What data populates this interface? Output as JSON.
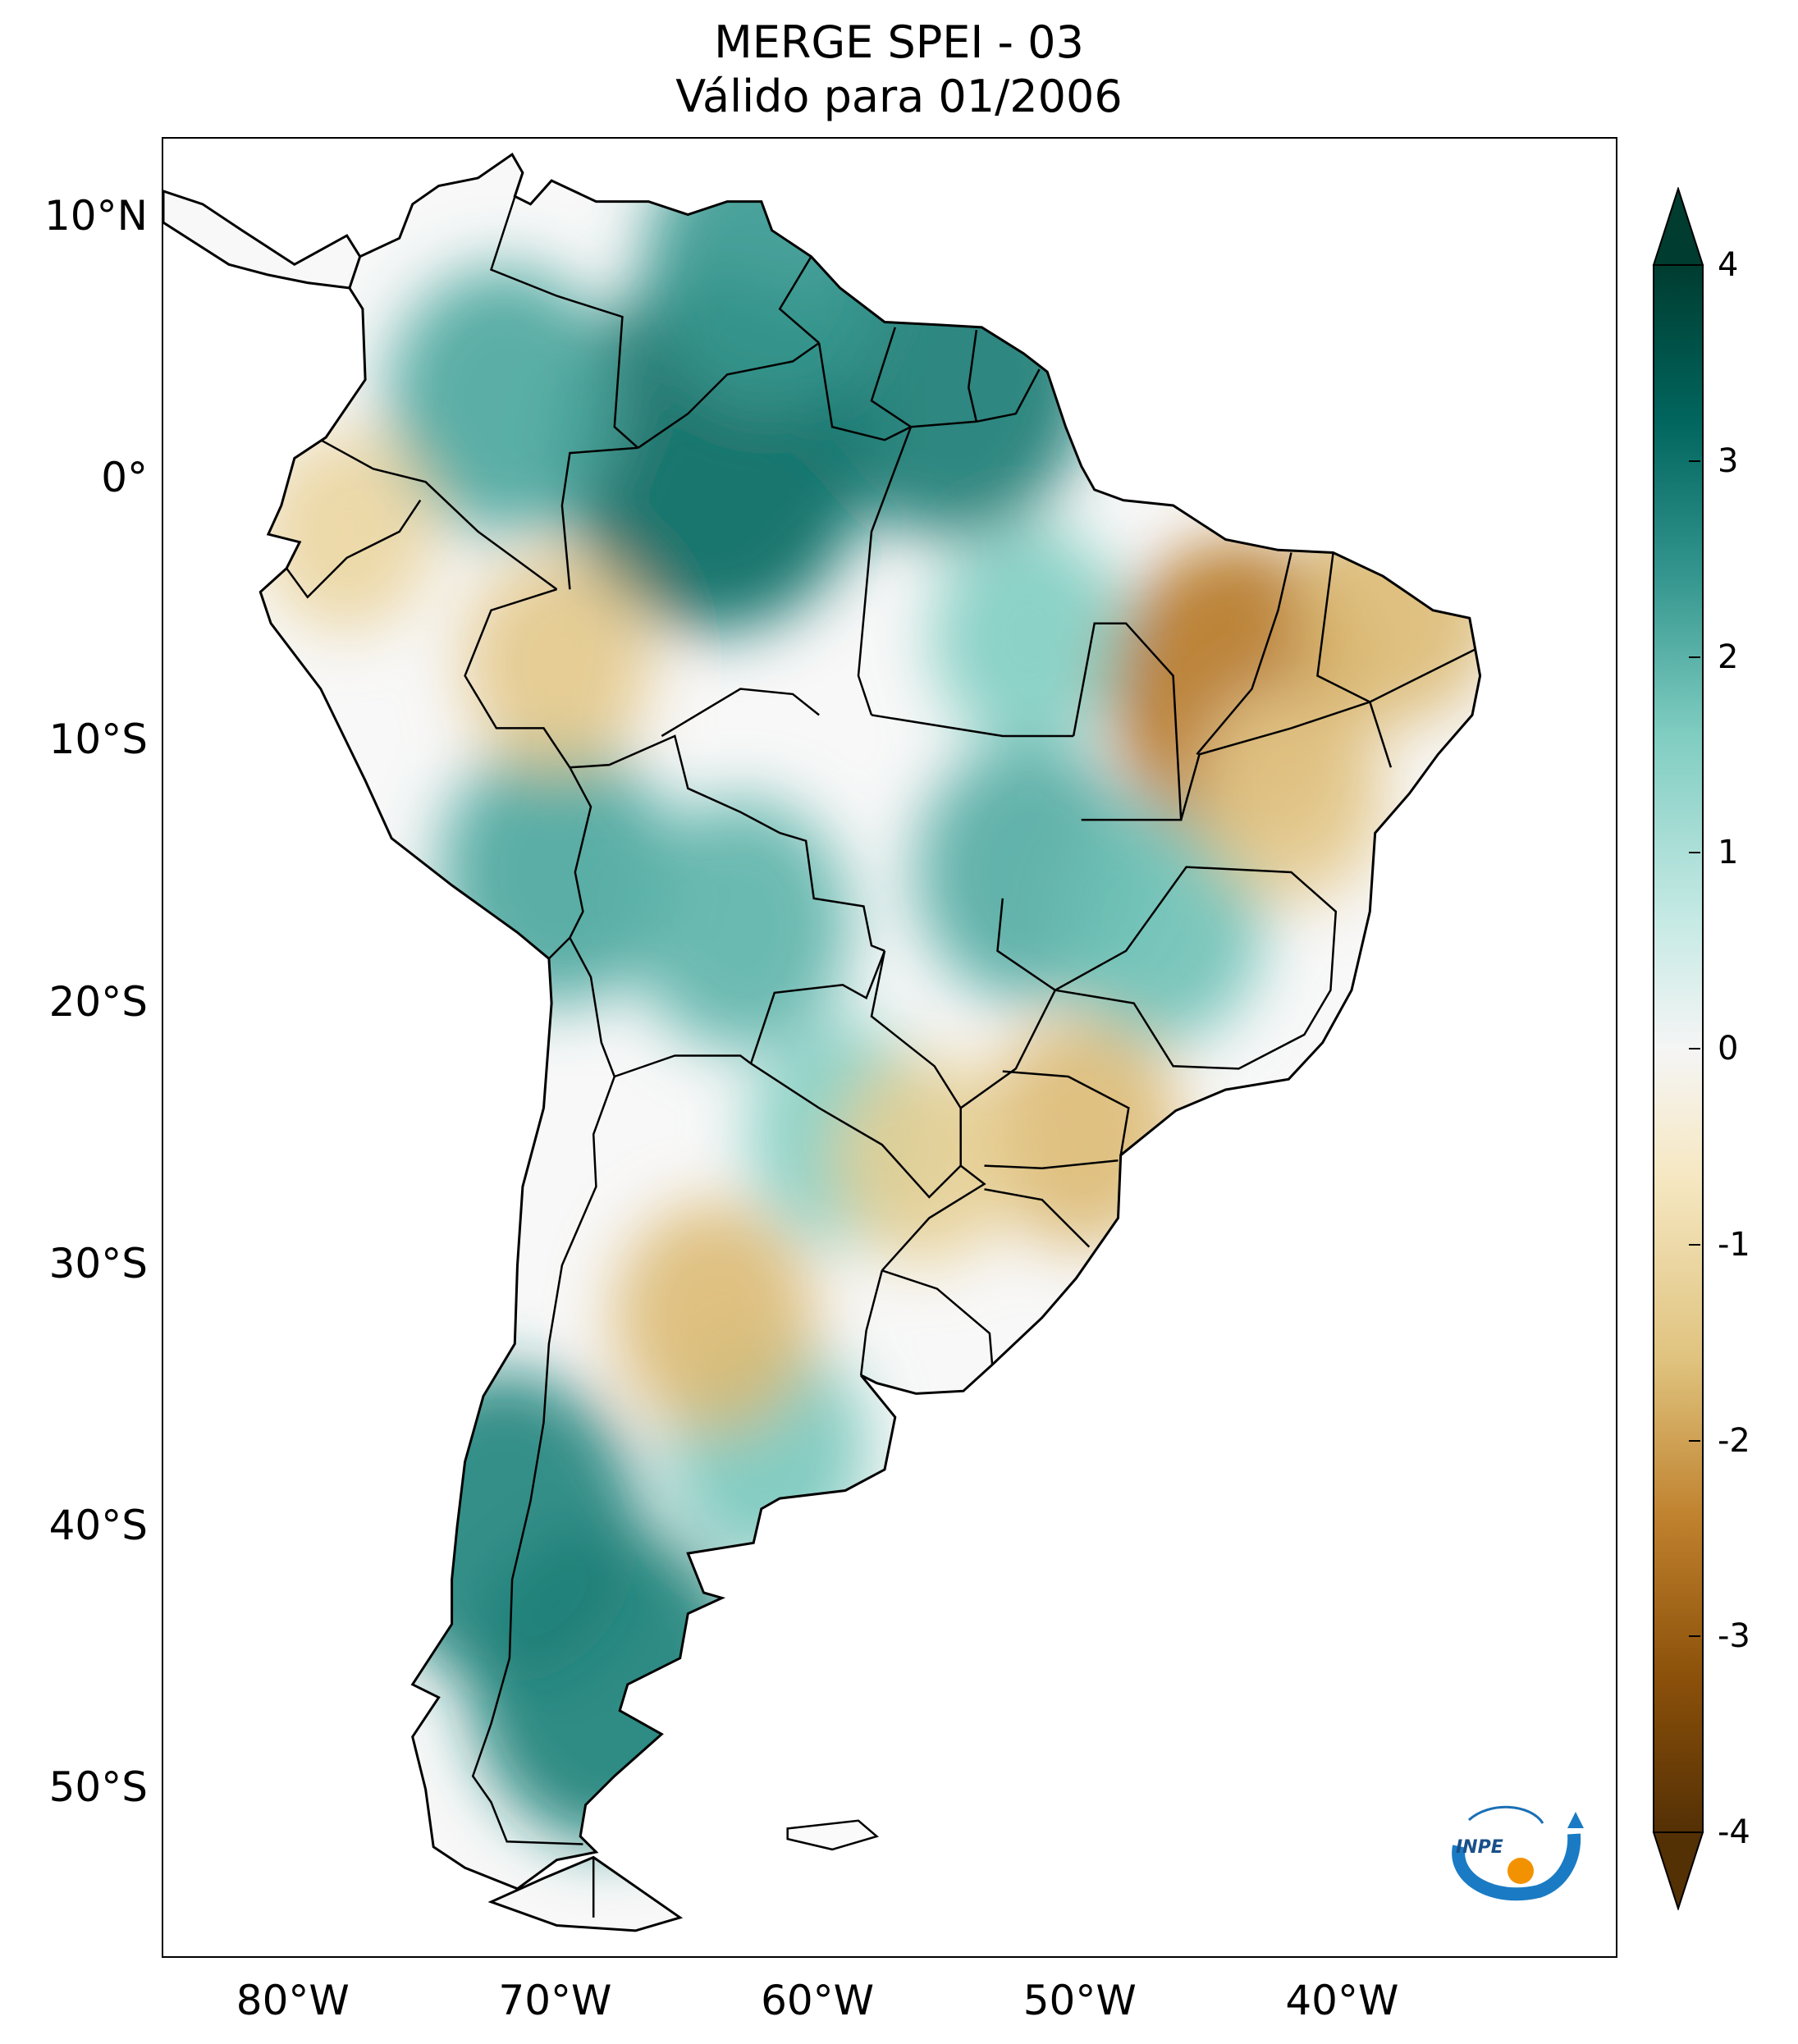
{
  "title": {
    "line1": "MERGE   SPEI - 03",
    "line2": "Válido para 01/2006"
  },
  "map": {
    "variable": "SPEI - 03",
    "dataset": "MERGE",
    "region": "South America",
    "extent": {
      "lon": [
        -85,
        -29.5
      ],
      "lat": [
        -56.5,
        13
      ]
    },
    "lat_ticks": [
      {
        "label": "10°N",
        "value": 10
      },
      {
        "label": "0°",
        "value": 0
      },
      {
        "label": "10°S",
        "value": -10
      },
      {
        "label": "20°S",
        "value": -20
      },
      {
        "label": "30°S",
        "value": -30
      },
      {
        "label": "40°S",
        "value": -40
      },
      {
        "label": "50°S",
        "value": -50
      }
    ],
    "lon_ticks": [
      {
        "label": "80°W",
        "value": -80
      },
      {
        "label": "70°W",
        "value": -70
      },
      {
        "label": "60°W",
        "value": -60
      },
      {
        "label": "50°W",
        "value": -50
      },
      {
        "label": "40°W",
        "value": -40
      }
    ]
  },
  "colorbar": {
    "min": -4,
    "max": 4,
    "ticks": [
      {
        "label": "4",
        "value": 4
      },
      {
        "label": "3",
        "value": 3
      },
      {
        "label": "2",
        "value": 2
      },
      {
        "label": "1",
        "value": 1
      },
      {
        "label": "0",
        "value": 0
      },
      {
        "label": "-1",
        "value": -1
      },
      {
        "label": "-2",
        "value": -2
      },
      {
        "label": "-3",
        "value": -3
      },
      {
        "label": "-4",
        "value": -4
      }
    ],
    "colors": {
      "wet_max": "#003c30",
      "wet_high": "#01665e",
      "wet_mid": "#35978f",
      "wet_low": "#80cdc1",
      "wet_faint": "#c7eae5",
      "neutral": "#f5f5f5",
      "dry_faint": "#f6e8c3",
      "dry_low": "#dfc27d",
      "dry_mid": "#bf812d",
      "dry_high": "#8c510a",
      "dry_max": "#543005"
    }
  },
  "logo": {
    "text": "INPE",
    "icon": "inpe-logo-icon"
  },
  "anomaly_patches": [
    {
      "lon": -64,
      "lat": 1,
      "value": 3.0
    },
    {
      "lon": -55,
      "lat": 4,
      "value": 2.6
    },
    {
      "lon": -62,
      "lat": 8,
      "value": 2.0
    },
    {
      "lon": -72,
      "lat": 3,
      "value": 1.8
    },
    {
      "lon": -70,
      "lat": -15,
      "value": 1.8
    },
    {
      "lon": -63,
      "lat": -17,
      "value": 1.6
    },
    {
      "lon": -52,
      "lat": -15,
      "value": 1.7
    },
    {
      "lon": -47,
      "lat": -17,
      "value": 1.4
    },
    {
      "lon": -52,
      "lat": -6,
      "value": 1.2
    },
    {
      "lon": -59,
      "lat": -25,
      "value": 1.2
    },
    {
      "lon": -72,
      "lat": -40,
      "value": 2.4
    },
    {
      "lon": -68,
      "lat": -46,
      "value": 2.5
    },
    {
      "lon": -62,
      "lat": -37,
      "value": 1.3
    },
    {
      "lon": -44,
      "lat": -8,
      "value": -2.2
    },
    {
      "lon": -38,
      "lat": -5,
      "value": -1.3
    },
    {
      "lon": -42,
      "lat": -12,
      "value": -1.1
    },
    {
      "lon": -50,
      "lat": -25,
      "value": -1.3
    },
    {
      "lon": -56,
      "lat": -26,
      "value": -1.0
    },
    {
      "lon": -64,
      "lat": -32,
      "value": -1.3
    },
    {
      "lon": -70,
      "lat": -7,
      "value": -1.1
    },
    {
      "lon": -78,
      "lat": -2,
      "value": -0.9
    }
  ]
}
